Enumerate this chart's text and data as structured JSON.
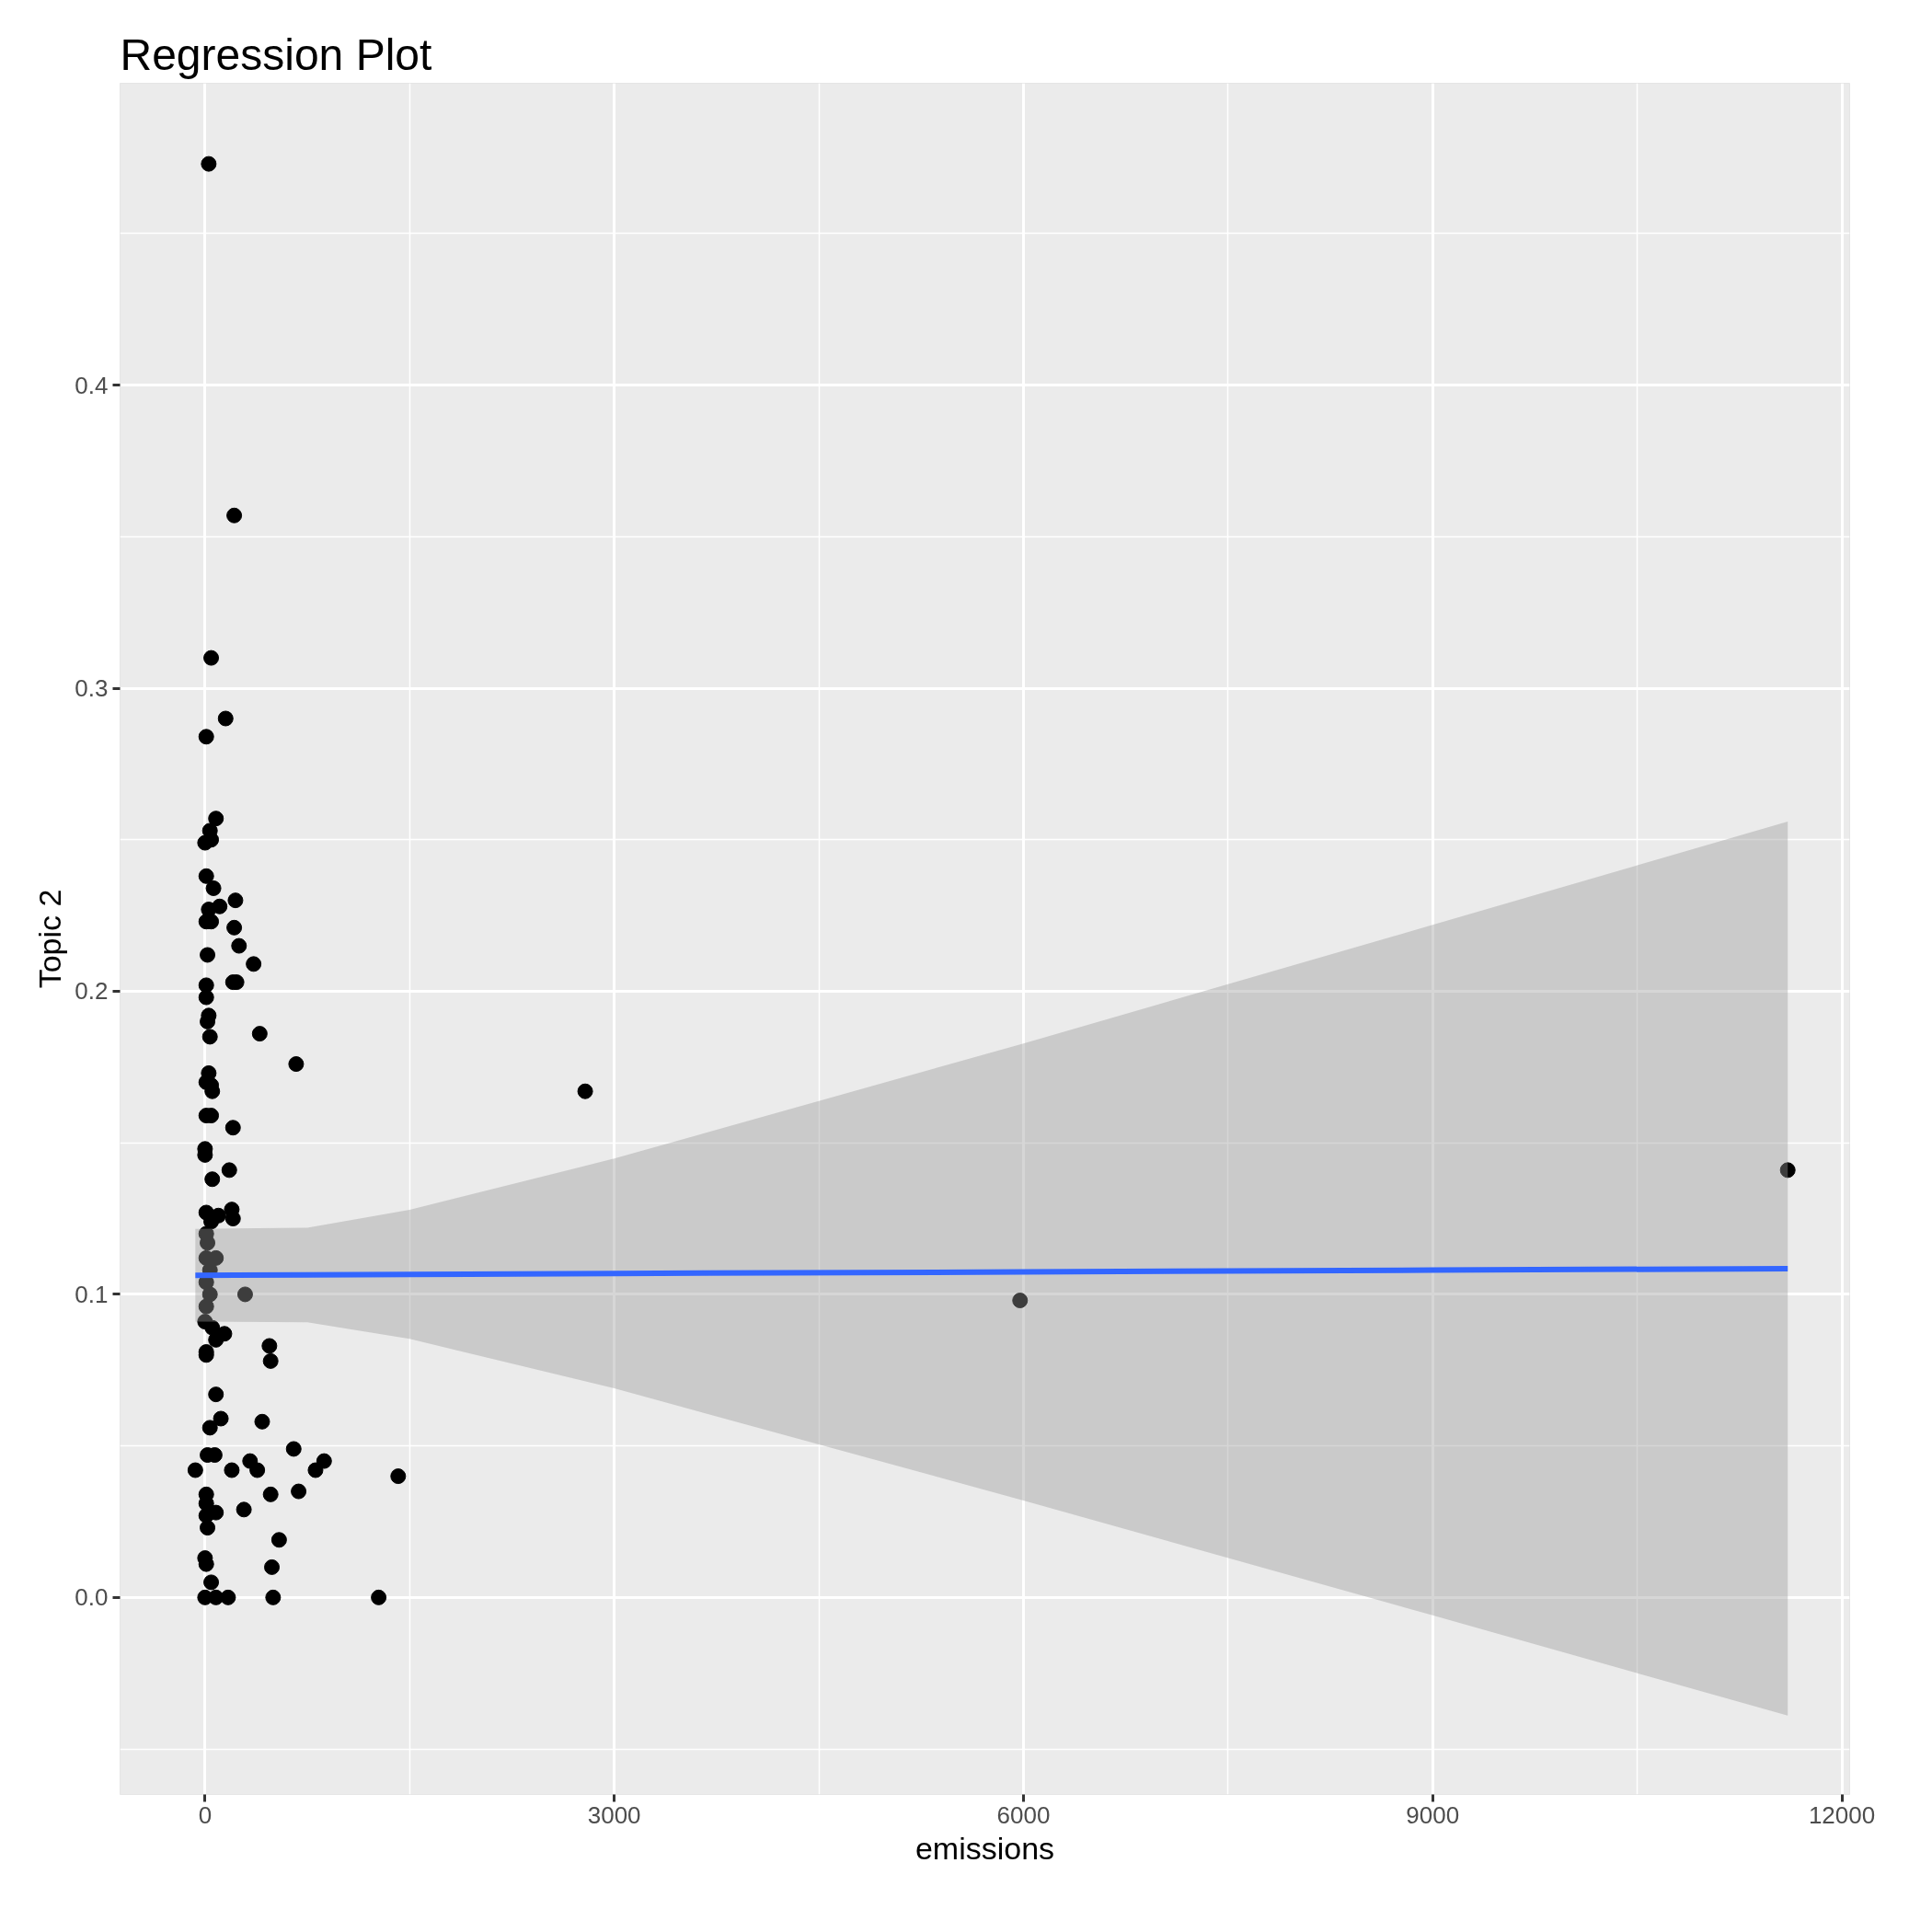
{
  "chart_data": {
    "type": "scatter",
    "title": "Regression Plot",
    "xlabel": "emissions",
    "ylabel": "Topic 2",
    "xlim": [
      -623,
      12057
    ],
    "ylim": [
      -0.065,
      0.4996
    ],
    "xticks": [
      0,
      3000,
      6000,
      9000,
      12000
    ],
    "yticks": [
      {
        "value": 0,
        "label": "0.0"
      },
      {
        "value": 0.1,
        "label": "0.1"
      },
      {
        "value": 0.2,
        "label": "0.2"
      },
      {
        "value": 0.3,
        "label": "0.3"
      },
      {
        "value": 0.4,
        "label": "0.4"
      }
    ],
    "grid": true,
    "series": [
      {
        "color": "#000000",
        "marker": "circle",
        "x": [
          27,
          214,
          45,
          151,
          9,
          80,
          36,
          45,
          0,
          9,
          62,
          223,
          107,
          27,
          9,
          45,
          214,
          249,
          18,
          356,
          205,
          231,
          9,
          9,
          27,
          18,
          401,
          36,
          668,
          27,
          9,
          45,
          2787,
          53,
          9,
          45,
          205,
          0,
          0,
          178,
          11603,
          53,
          196,
          9,
          98,
          205,
          45,
          9,
          18,
          80,
          9,
          36,
          9,
          294,
          36,
          5975,
          9,
          0,
          53,
          142,
          80,
          472,
          9,
          9,
          481,
          80,
          116,
          419,
          36,
          650,
          18,
          71,
          873,
          330,
          -71,
          196,
          383,
          810,
          1416,
          686,
          481,
          9,
          9,
          285,
          80,
          9,
          18,
          543,
          0,
          9,
          490,
          45,
          0,
          80,
          169,
          499,
          1273
        ],
        "values": [
          0.473,
          0.357,
          0.31,
          0.29,
          0.284,
          0.257,
          0.253,
          0.25,
          0.249,
          0.238,
          0.234,
          0.23,
          0.228,
          0.227,
          0.223,
          0.223,
          0.221,
          0.215,
          0.212,
          0.209,
          0.203,
          0.203,
          0.202,
          0.198,
          0.192,
          0.19,
          0.186,
          0.185,
          0.176,
          0.173,
          0.17,
          0.169,
          0.167,
          0.167,
          0.159,
          0.159,
          0.155,
          0.148,
          0.146,
          0.141,
          0.141,
          0.138,
          0.128,
          0.127,
          0.126,
          0.125,
          0.124,
          0.12,
          0.117,
          0.112,
          0.112,
          0.108,
          0.104,
          0.1,
          0.1,
          0.098,
          0.096,
          0.091,
          0.089,
          0.087,
          0.085,
          0.083,
          0.081,
          0.08,
          0.078,
          0.067,
          0.059,
          0.058,
          0.056,
          0.049,
          0.047,
          0.047,
          0.045,
          0.045,
          0.042,
          0.042,
          0.042,
          0.042,
          0.04,
          0.035,
          0.034,
          0.034,
          0.031,
          0.029,
          0.028,
          0.027,
          0.023,
          0.019,
          0.013,
          0.011,
          0.01,
          0.005,
          0,
          0,
          0,
          0,
          0
        ]
      },
      {
        "type": "line",
        "color": "#3366ff",
        "x": [
          -71,
          750,
          1500,
          3000,
          6000,
          9000,
          11603
        ],
        "values": [
          0.1063,
          0.1064,
          0.1066,
          0.1069,
          0.1074,
          0.108,
          0.1085
        ],
        "lower": [
          0.091,
          0.0908,
          0.0853,
          0.069,
          0.032,
          -0.0059,
          -0.039
        ],
        "upper": [
          0.1216,
          0.122,
          0.1279,
          0.1448,
          0.1828,
          0.2219,
          0.256
        ]
      }
    ]
  }
}
